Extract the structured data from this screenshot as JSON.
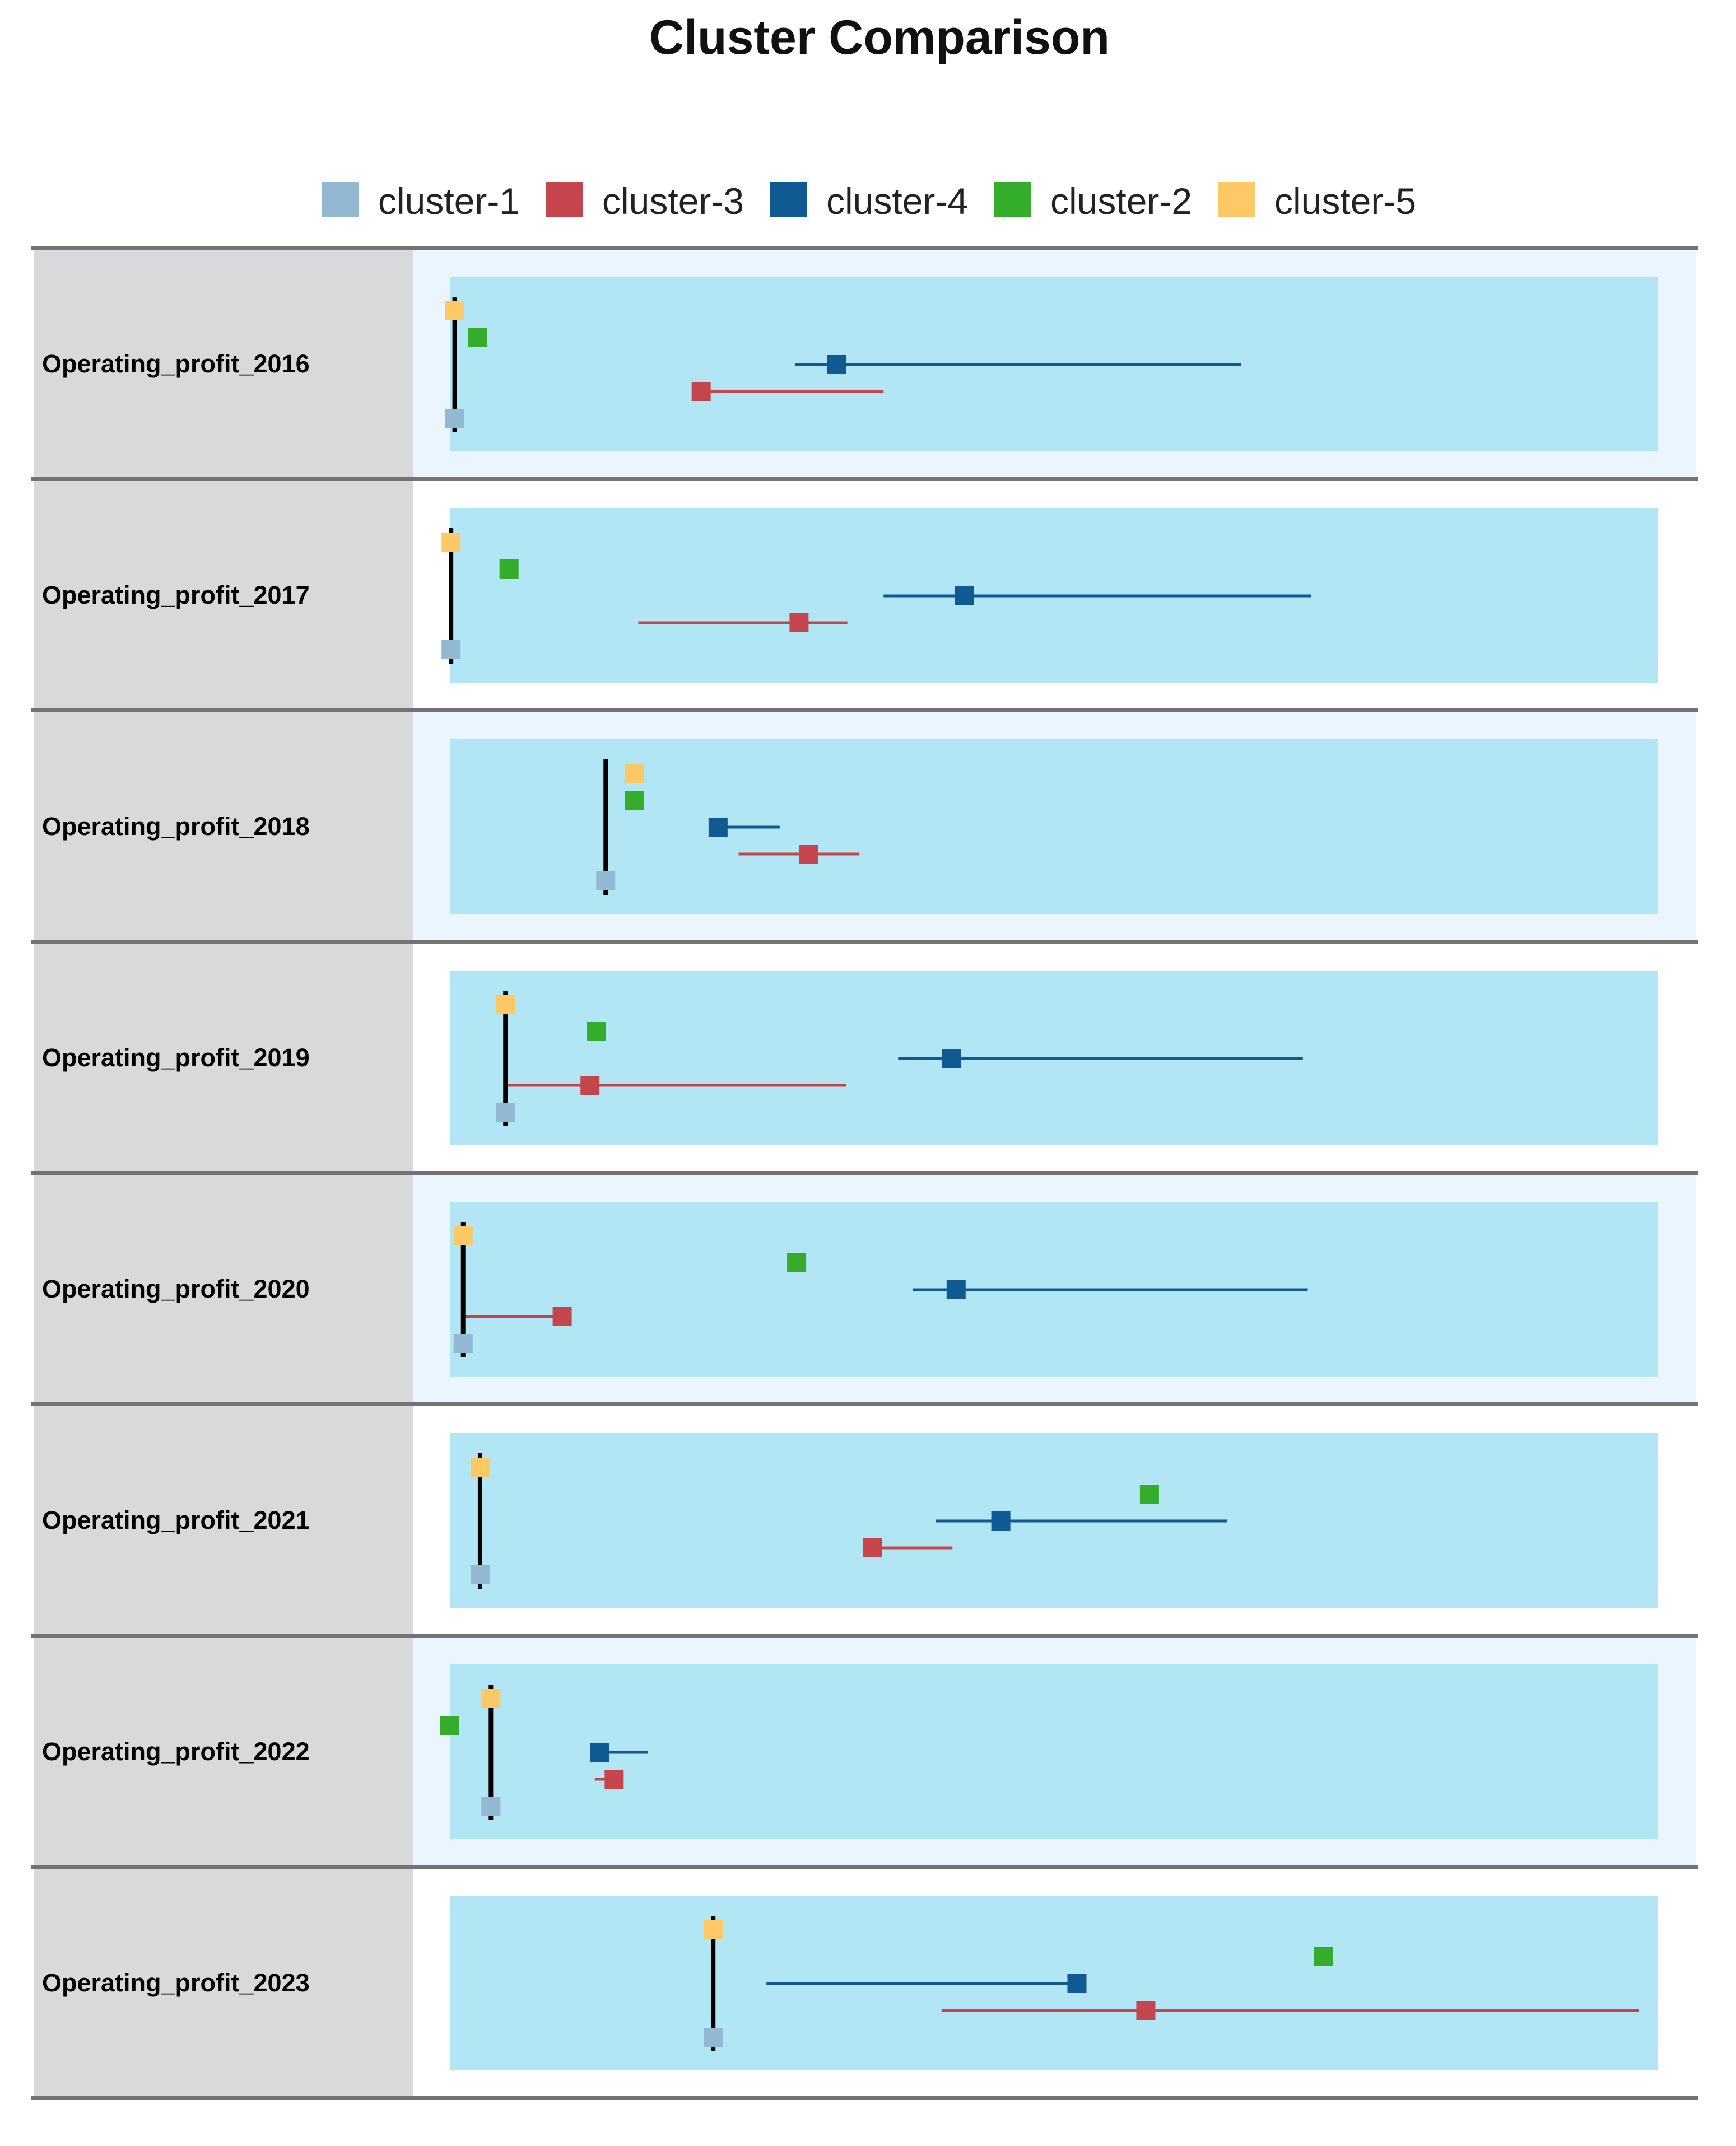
{
  "chart_data": {
    "type": "box",
    "title": "Cluster Comparison",
    "legend": {
      "placement": "top",
      "entries": [
        {
          "key": "cluster-1",
          "label": "cluster-1",
          "color": "#92b9d1"
        },
        {
          "key": "cluster-3",
          "label": "cluster-3",
          "color": "#c4464c"
        },
        {
          "key": "cluster-4",
          "label": "cluster-4",
          "color": "#0f5a92"
        },
        {
          "key": "cluster-2",
          "label": "cluster-2",
          "color": "#34ac2c"
        },
        {
          "key": "cluster-5",
          "label": "cluster-5",
          "color": "#fdc966"
        }
      ]
    },
    "series_order": [
      "cluster-5",
      "cluster-2",
      "cluster-4",
      "cluster-3",
      "cluster-1"
    ],
    "x_scale": "relative (0 = left edge of plot band, 100 = right edge); no axis ticks printed",
    "xlim": [
      0,
      100
    ],
    "colors": {
      "label_band": "#d7d9db",
      "row_bg_alt": "#eaf5fd",
      "plot_band": "#b3e6f5",
      "separator": "#737373",
      "median_bar": "#000000"
    },
    "rows": [
      {
        "label": "Operating_profit_2016",
        "shade": true,
        "medians": {
          "cluster-5": 0.4,
          "cluster-2": 2.3,
          "cluster-4": 32.0,
          "cluster-3": 20.8,
          "cluster-1": 0.4
        },
        "ranges": {
          "cluster-4": [
            28.6,
            65.5
          ],
          "cluster-3": [
            20.8,
            35.9
          ],
          "cluster-1": [
            0.4,
            0.4
          ],
          "cluster-5": [
            0.4,
            0.4
          ]
        },
        "vline": [
          0.4
        ]
      },
      {
        "label": "Operating_profit_2017",
        "shade": false,
        "medians": {
          "cluster-5": 0.1,
          "cluster-2": 4.9,
          "cluster-4": 42.6,
          "cluster-3": 28.9,
          "cluster-1": 0.1
        },
        "ranges": {
          "cluster-4": [
            35.9,
            71.3
          ],
          "cluster-3": [
            15.6,
            32.9
          ]
        },
        "vline": [
          0.1
        ]
      },
      {
        "label": "Operating_profit_2018",
        "shade": true,
        "medians": {
          "cluster-5": 15.3,
          "cluster-2": 15.3,
          "cluster-4": 22.2,
          "cluster-3": 29.7,
          "cluster-1": 12.9
        },
        "ranges": {
          "cluster-4": [
            22.2,
            27.3
          ],
          "cluster-3": [
            23.9,
            33.9
          ]
        },
        "vline": [
          12.9
        ]
      },
      {
        "label": "Operating_profit_2019",
        "shade": false,
        "medians": {
          "cluster-5": 4.6,
          "cluster-2": 12.1,
          "cluster-4": 41.5,
          "cluster-3": 11.6,
          "cluster-1": 4.6
        },
        "ranges": {
          "cluster-4": [
            37.1,
            70.6
          ],
          "cluster-3": [
            4.6,
            32.8
          ]
        },
        "vline": [
          4.6
        ]
      },
      {
        "label": "Operating_profit_2020",
        "shade": true,
        "medians": {
          "cluster-5": 1.1,
          "cluster-2": 28.7,
          "cluster-4": 41.9,
          "cluster-3": 9.3,
          "cluster-1": 1.1
        },
        "ranges": {
          "cluster-4": [
            38.3,
            71.0
          ],
          "cluster-3": [
            1.1,
            9.3
          ]
        },
        "vline": [
          1.1
        ]
      },
      {
        "label": "Operating_profit_2021",
        "shade": false,
        "medians": {
          "cluster-5": 2.5,
          "cluster-2": 57.9,
          "cluster-4": 45.6,
          "cluster-3": 35.0,
          "cluster-1": 2.5
        },
        "ranges": {
          "cluster-4": [
            40.2,
            64.3
          ],
          "cluster-3": [
            35.0,
            41.6
          ]
        },
        "vline": [
          2.5
        ]
      },
      {
        "label": "Operating_profit_2022",
        "shade": true,
        "medians": {
          "cluster-5": 3.4,
          "cluster-2": 0.0,
          "cluster-4": 12.4,
          "cluster-3": 13.6,
          "cluster-1": 3.4
        },
        "ranges": {
          "cluster-4": [
            12.4,
            16.4
          ],
          "cluster-3": [
            12.0,
            13.6
          ]
        },
        "vline": [
          3.4
        ]
      },
      {
        "label": "Operating_profit_2023",
        "shade": false,
        "medians": {
          "cluster-5": 21.8,
          "cluster-2": 72.3,
          "cluster-4": 51.9,
          "cluster-3": 57.6,
          "cluster-1": 21.8
        },
        "ranges": {
          "cluster-4": [
            26.2,
            51.9
          ],
          "cluster-3": [
            40.7,
            98.4
          ]
        },
        "vline": [
          21.8
        ]
      }
    ]
  }
}
